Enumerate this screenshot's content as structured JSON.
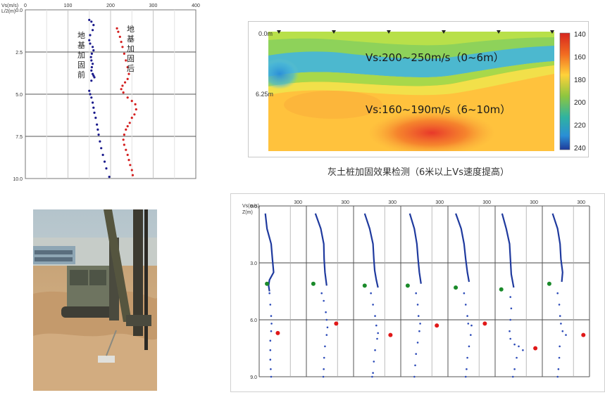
{
  "chart_data": [
    {
      "type": "scatter",
      "xlabel": "Vs(m/s)",
      "ylabel": "L/2(m)",
      "x_ticks": [
        "0",
        "100",
        "200",
        "300",
        "400"
      ],
      "y_ticks": [
        "0.0",
        "2.5",
        "5.0",
        "7.5",
        "10.0"
      ],
      "xlim": [
        0,
        400
      ],
      "ylim": [
        0,
        10
      ],
      "annotations": [
        "地基加固前",
        "地基加固后"
      ],
      "series": [
        {
          "name": "地基加固前",
          "color": "#1a1a8c",
          "points": [
            [
              150,
              0.6
            ],
            [
              155,
              0.7
            ],
            [
              160,
              0.9
            ],
            [
              158,
              1.2
            ],
            [
              152,
              1.5
            ],
            [
              150,
              1.8
            ],
            [
              152,
              2.0
            ],
            [
              158,
              2.2
            ],
            [
              160,
              2.4
            ],
            [
              156,
              2.6
            ],
            [
              154,
              2.8
            ],
            [
              155,
              3.0
            ],
            [
              158,
              3.2
            ],
            [
              156,
              3.4
            ],
            [
              155,
              3.6
            ],
            [
              158,
              3.8
            ],
            [
              160,
              3.9
            ],
            [
              162,
              4.0
            ],
            [
              155,
              4.2
            ],
            [
              150,
              4.8
            ],
            [
              152,
              5.0
            ],
            [
              155,
              5.2
            ],
            [
              158,
              5.5
            ],
            [
              160,
              5.8
            ],
            [
              162,
              6.1
            ],
            [
              165,
              6.4
            ],
            [
              168,
              6.8
            ],
            [
              170,
              7.1
            ],
            [
              172,
              7.4
            ],
            [
              175,
              7.8
            ],
            [
              178,
              8.2
            ],
            [
              182,
              8.6
            ],
            [
              186,
              9.0
            ],
            [
              190,
              9.4
            ],
            [
              197,
              9.9
            ]
          ]
        },
        {
          "name": "地基加固后",
          "color": "#d42020",
          "points": [
            [
              215,
              1.1
            ],
            [
              218,
              1.3
            ],
            [
              222,
              1.6
            ],
            [
              225,
              1.9
            ],
            [
              228,
              2.2
            ],
            [
              232,
              2.6
            ],
            [
              236,
              3.0
            ],
            [
              240,
              3.4
            ],
            [
              243,
              3.8
            ],
            [
              240,
              4.1
            ],
            [
              234,
              4.3
            ],
            [
              228,
              4.5
            ],
            [
              225,
              4.7
            ],
            [
              230,
              4.9
            ],
            [
              240,
              5.2
            ],
            [
              250,
              5.4
            ],
            [
              258,
              5.6
            ],
            [
              260,
              5.9
            ],
            [
              256,
              6.2
            ],
            [
              250,
              6.4
            ],
            [
              245,
              6.7
            ],
            [
              240,
              6.9
            ],
            [
              236,
              7.1
            ],
            [
              232,
              7.4
            ],
            [
              230,
              7.7
            ],
            [
              232,
              8.0
            ],
            [
              236,
              8.3
            ],
            [
              240,
              8.6
            ],
            [
              243,
              8.9
            ],
            [
              246,
              9.2
            ],
            [
              250,
              9.5
            ],
            [
              252,
              9.8
            ]
          ]
        }
      ]
    },
    {
      "type": "heatmap",
      "y_ticks": [
        "0.0m",
        "6.25m"
      ],
      "colorbar_ticks": [
        "140",
        "160",
        "180",
        "200",
        "220",
        "240"
      ],
      "annotations": [
        "Vs:200~250m/s（0~6m）",
        "Vs:160~190m/s（6~10m）"
      ],
      "caption": "灰土桩加固效果检测（6米以上Vs速度提高）"
    },
    {
      "type": "scatter",
      "xlabel": "Vs(m/s)",
      "ylabel": "Z(m)",
      "y_ticks": [
        "0.0",
        "3.0",
        "6.0",
        "9.0"
      ],
      "x_tick": "300",
      "ylim": [
        0,
        9
      ],
      "profiles": [
        {
          "line": [
            [
              0.08,
              0.4
            ],
            [
              0.12,
              1.2
            ],
            [
              0.22,
              2.0
            ],
            [
              0.25,
              2.8
            ],
            [
              0.28,
              3.5
            ],
            [
              0.18,
              3.9
            ],
            [
              0.16,
              4.2
            ],
            [
              0.18,
              4.5
            ]
          ],
          "green": [
            0.12,
            4.1
          ],
          "dots": [
            [
              0.18,
              4.6
            ],
            [
              0.2,
              5.2
            ],
            [
              0.22,
              5.8
            ],
            [
              0.23,
              6.2
            ],
            [
              0.22,
              6.6
            ],
            [
              0.2,
              7.1
            ],
            [
              0.2,
              7.6
            ],
            [
              0.2,
              8.1
            ],
            [
              0.21,
              8.6
            ],
            [
              0.22,
              9.0
            ]
          ],
          "red": [
            0.38,
            6.7
          ]
        },
        {
          "line": [
            [
              0.15,
              0.4
            ],
            [
              0.28,
              1.2
            ],
            [
              0.35,
              2.0
            ],
            [
              0.36,
              2.8
            ],
            [
              0.38,
              3.5
            ],
            [
              0.42,
              4.2
            ]
          ],
          "green": [
            0.1,
            4.1
          ],
          "dots": [
            [
              0.3,
              4.6
            ],
            [
              0.35,
              5.0
            ],
            [
              0.4,
              5.6
            ],
            [
              0.42,
              6.0
            ],
            [
              0.44,
              6.4
            ],
            [
              0.42,
              6.8
            ],
            [
              0.38,
              7.4
            ],
            [
              0.36,
              8.0
            ],
            [
              0.35,
              8.6
            ],
            [
              0.34,
              9.0
            ]
          ],
          "red": [
            0.65,
            6.2
          ]
        },
        {
          "line": [
            [
              0.2,
              0.4
            ],
            [
              0.32,
              1.2
            ],
            [
              0.4,
              2.0
            ],
            [
              0.42,
              2.8
            ],
            [
              0.44,
              3.4
            ],
            [
              0.48,
              3.9
            ],
            [
              0.52,
              4.3
            ]
          ],
          "green": [
            0.2,
            4.2
          ],
          "dots": [
            [
              0.35,
              4.6
            ],
            [
              0.4,
              5.2
            ],
            [
              0.45,
              5.8
            ],
            [
              0.48,
              6.3
            ],
            [
              0.52,
              6.7
            ],
            [
              0.5,
              7.0
            ],
            [
              0.45,
              7.6
            ],
            [
              0.42,
              8.2
            ],
            [
              0.4,
              8.8
            ],
            [
              0.38,
              9.0
            ]
          ],
          "red": [
            0.82,
            6.8
          ]
        },
        {
          "line": [
            [
              0.15,
              0.4
            ],
            [
              0.26,
              1.2
            ],
            [
              0.32,
              2.0
            ],
            [
              0.35,
              2.8
            ],
            [
              0.38,
              3.5
            ],
            [
              0.42,
              4.1
            ]
          ],
          "green": [
            0.1,
            4.2
          ],
          "dots": [
            [
              0.3,
              4.6
            ],
            [
              0.34,
              5.2
            ],
            [
              0.36,
              5.8
            ],
            [
              0.4,
              6.2
            ],
            [
              0.38,
              6.6
            ],
            [
              0.34,
              7.2
            ],
            [
              0.3,
              7.8
            ],
            [
              0.28,
              8.4
            ],
            [
              0.26,
              9.0
            ]
          ],
          "red": [
            0.8,
            6.3
          ]
        },
        {
          "line": [
            [
              0.12,
              0.4
            ],
            [
              0.25,
              1.2
            ],
            [
              0.32,
              2.0
            ],
            [
              0.36,
              2.8
            ],
            [
              0.4,
              3.5
            ],
            [
              0.44,
              4.0
            ]
          ],
          "green": [
            0.12,
            4.3
          ],
          "dots": [
            [
              0.32,
              4.6
            ],
            [
              0.36,
              5.2
            ],
            [
              0.4,
              5.8
            ],
            [
              0.42,
              6.2
            ],
            [
              0.5,
              6.3
            ],
            [
              0.48,
              6.8
            ],
            [
              0.44,
              7.4
            ],
            [
              0.4,
              8.0
            ],
            [
              0.38,
              8.6
            ],
            [
              0.36,
              9.0
            ]
          ],
          "red": [
            0.82,
            6.2
          ]
        },
        {
          "line": [
            [
              0.1,
              0.4
            ],
            [
              0.2,
              1.2
            ],
            [
              0.28,
              2.0
            ],
            [
              0.3,
              2.8
            ],
            [
              0.32,
              3.6
            ],
            [
              0.38,
              4.3
            ]
          ],
          "green": [
            0.08,
            4.4
          ],
          "dots": [
            [
              0.3,
              4.8
            ],
            [
              0.32,
              5.4
            ],
            [
              0.3,
              6.0
            ],
            [
              0.28,
              6.6
            ],
            [
              0.3,
              7.0
            ],
            [
              0.4,
              7.3
            ],
            [
              0.5,
              7.4
            ],
            [
              0.6,
              7.6
            ],
            [
              0.45,
              8.0
            ],
            [
              0.4,
              8.6
            ],
            [
              0.36,
              9.0
            ]
          ],
          "red": [
            0.9,
            7.5
          ]
        },
        {
          "line": [
            [
              0.18,
              0.4
            ],
            [
              0.3,
              1.2
            ],
            [
              0.36,
              2.0
            ],
            [
              0.38,
              2.8
            ],
            [
              0.42,
              3.5
            ],
            [
              0.4,
              4.0
            ]
          ],
          "green": [
            0.1,
            4.1
          ],
          "dots": [
            [
              0.3,
              4.6
            ],
            [
              0.34,
              5.2
            ],
            [
              0.36,
              5.8
            ],
            [
              0.38,
              6.2
            ],
            [
              0.42,
              6.6
            ],
            [
              0.5,
              6.8
            ],
            [
              0.35,
              7.4
            ],
            [
              0.34,
              8.0
            ],
            [
              0.32,
              8.6
            ],
            [
              0.3,
              9.0
            ]
          ],
          "red": [
            0.92,
            6.8
          ]
        }
      ]
    }
  ]
}
